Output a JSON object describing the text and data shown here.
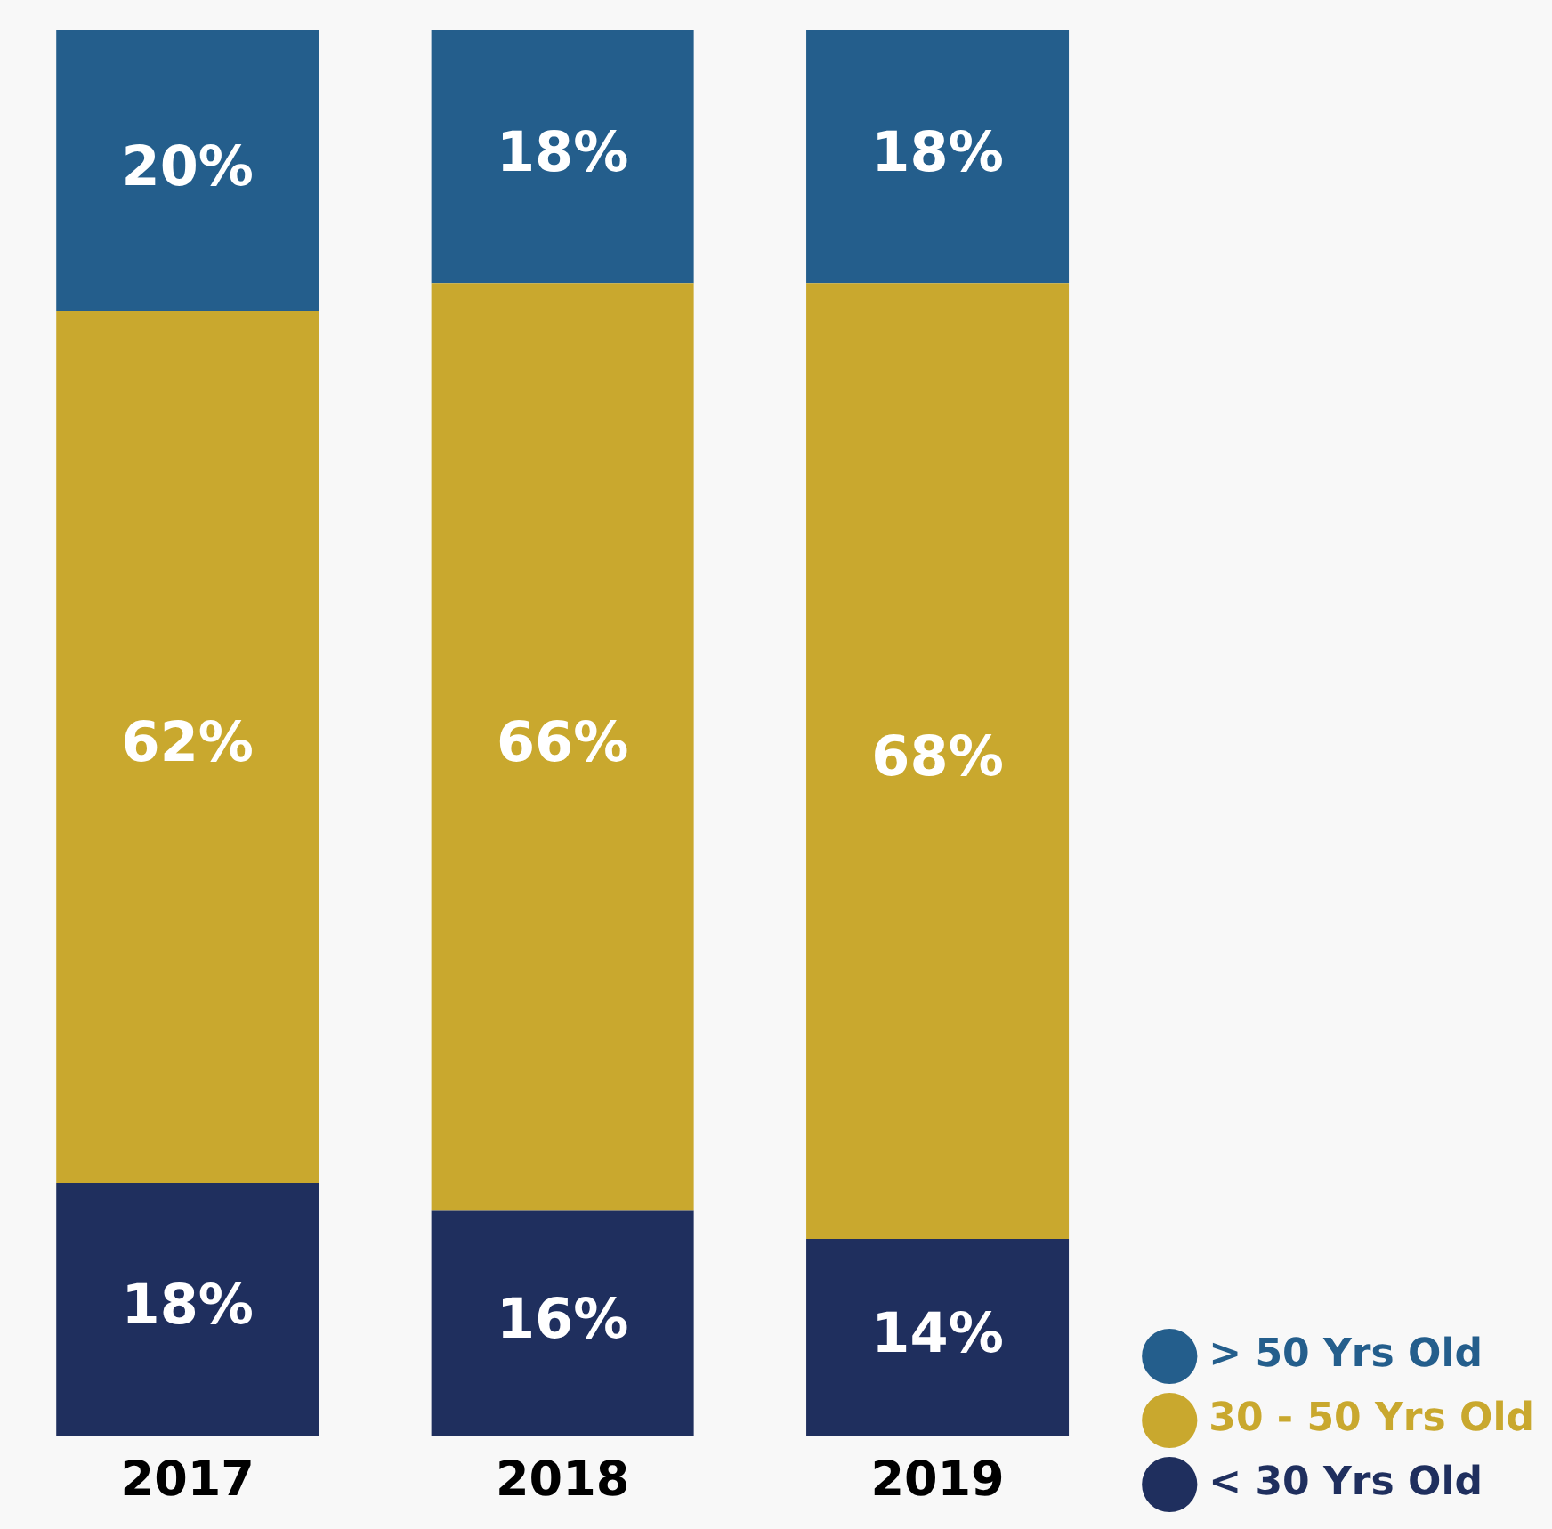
{
  "chart_data": {
    "type": "bar",
    "stacked": true,
    "categories": [
      "2017",
      "2018",
      "2019"
    ],
    "series": [
      {
        "name": "< 30 Yrs Old",
        "color": "#1f2f5e",
        "values": [
          18,
          16,
          14
        ],
        "value_labels": [
          "18%",
          "16%",
          "14%"
        ]
      },
      {
        "name": "30 - 50 Yrs Old",
        "color": "#c9a82e",
        "values": [
          62,
          66,
          68
        ],
        "value_labels": [
          "62%",
          "66%",
          "68%"
        ]
      },
      {
        "name": "> 50 Yrs Old",
        "color": "#245e8c",
        "values": [
          20,
          18,
          18
        ],
        "value_labels": [
          "20%",
          "18%",
          "18%"
        ]
      }
    ],
    "legend": "bottom right",
    "grid": false,
    "tick_labels": "x"
  }
}
